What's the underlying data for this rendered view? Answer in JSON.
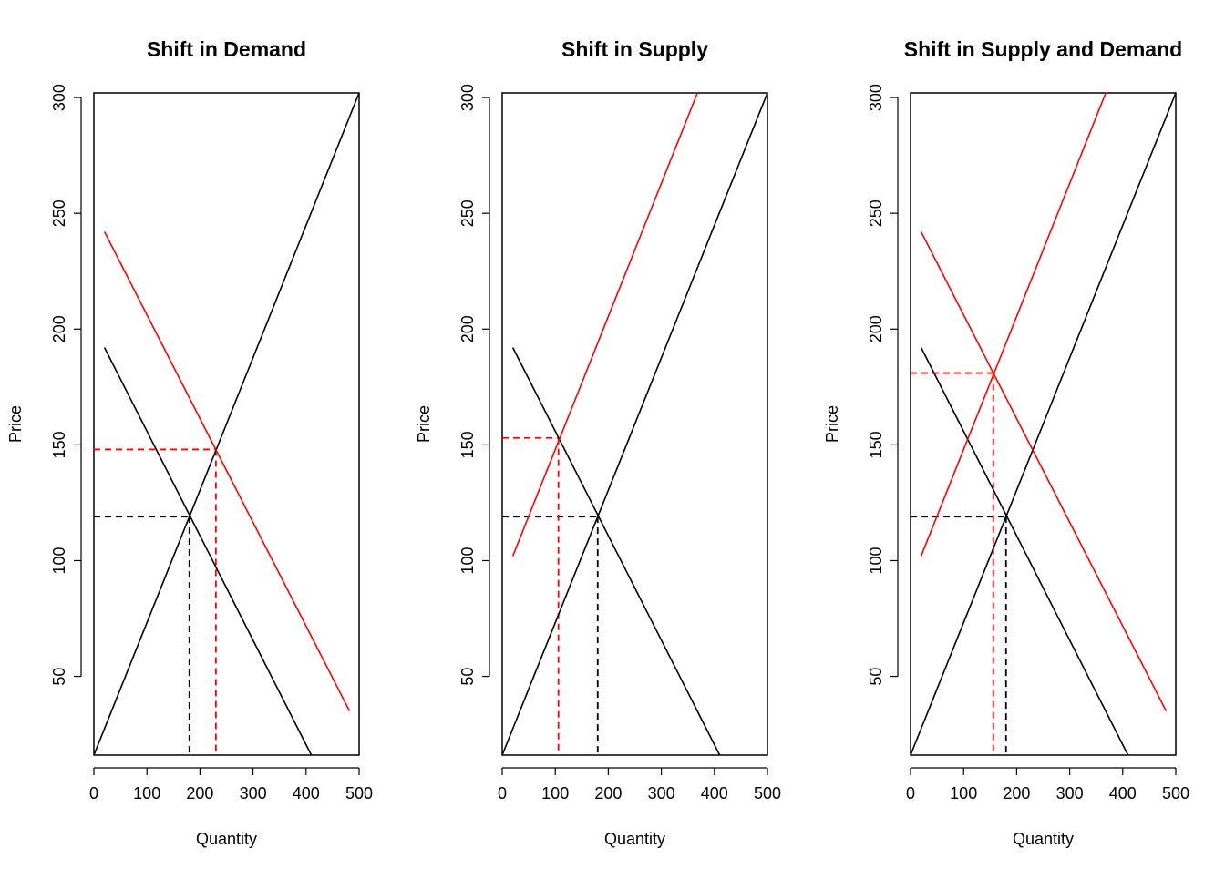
{
  "chart_data": [
    {
      "type": "line",
      "title": "Shift in Demand",
      "xlabel": "Quantity",
      "ylabel": "Price",
      "xlim": [
        0,
        500
      ],
      "ylim": [
        16,
        302
      ],
      "xticks": [
        0,
        100,
        200,
        300,
        400,
        500
      ],
      "yticks": [
        50,
        100,
        150,
        200,
        250,
        300
      ],
      "colors": {
        "original": "#000000",
        "shifted": "#ff0000"
      },
      "series": [
        {
          "role": "supply",
          "color": "#000000",
          "style": "solid",
          "x": [
            0,
            500
          ],
          "y": [
            16,
            302
          ]
        },
        {
          "role": "demand",
          "color": "#000000",
          "style": "solid",
          "x": [
            20,
            410
          ],
          "y": [
            192,
            16
          ]
        },
        {
          "role": "demand shifted",
          "color": "#ff0000",
          "style": "solid",
          "x": [
            20,
            482
          ],
          "y": [
            242,
            35
          ]
        }
      ],
      "equilibria": [
        {
          "color": "#000000",
          "quantity": 180,
          "price": 119
        },
        {
          "color": "#ff0000",
          "quantity": 230,
          "price": 148
        }
      ]
    },
    {
      "type": "line",
      "title": "Shift in Supply",
      "xlabel": "Quantity",
      "ylabel": "Price",
      "xlim": [
        0,
        500
      ],
      "ylim": [
        16,
        302
      ],
      "xticks": [
        0,
        100,
        200,
        300,
        400,
        500
      ],
      "yticks": [
        50,
        100,
        150,
        200,
        250,
        300
      ],
      "colors": {
        "original": "#000000",
        "shifted": "#ff0000"
      },
      "series": [
        {
          "role": "supply",
          "color": "#000000",
          "style": "solid",
          "x": [
            0,
            500
          ],
          "y": [
            16,
            302
          ]
        },
        {
          "role": "demand",
          "color": "#000000",
          "style": "solid",
          "x": [
            20,
            410
          ],
          "y": [
            192,
            16
          ]
        },
        {
          "role": "supply shifted",
          "color": "#ff0000",
          "style": "solid",
          "x": [
            20,
            368
          ],
          "y": [
            102,
            302
          ]
        }
      ],
      "equilibria": [
        {
          "color": "#000000",
          "quantity": 180,
          "price": 119
        },
        {
          "color": "#ff0000",
          "quantity": 106,
          "price": 153
        }
      ]
    },
    {
      "type": "line",
      "title": "Shift in Supply and Demand",
      "xlabel": "Quantity",
      "ylabel": "Price",
      "xlim": [
        0,
        500
      ],
      "ylim": [
        16,
        302
      ],
      "xticks": [
        0,
        100,
        200,
        300,
        400,
        500
      ],
      "yticks": [
        50,
        100,
        150,
        200,
        250,
        300
      ],
      "colors": {
        "original": "#000000",
        "shifted": "#ff0000"
      },
      "series": [
        {
          "role": "supply",
          "color": "#000000",
          "style": "solid",
          "x": [
            0,
            500
          ],
          "y": [
            16,
            302
          ]
        },
        {
          "role": "demand",
          "color": "#000000",
          "style": "solid",
          "x": [
            20,
            410
          ],
          "y": [
            192,
            16
          ]
        },
        {
          "role": "supply shifted",
          "color": "#ff0000",
          "style": "solid",
          "x": [
            20,
            368
          ],
          "y": [
            102,
            302
          ]
        },
        {
          "role": "demand shifted",
          "color": "#ff0000",
          "style": "solid",
          "x": [
            20,
            482
          ],
          "y": [
            242,
            35
          ]
        }
      ],
      "equilibria": [
        {
          "color": "#000000",
          "quantity": 180,
          "price": 119
        },
        {
          "color": "#ff0000",
          "quantity": 156,
          "price": 181
        }
      ]
    }
  ]
}
